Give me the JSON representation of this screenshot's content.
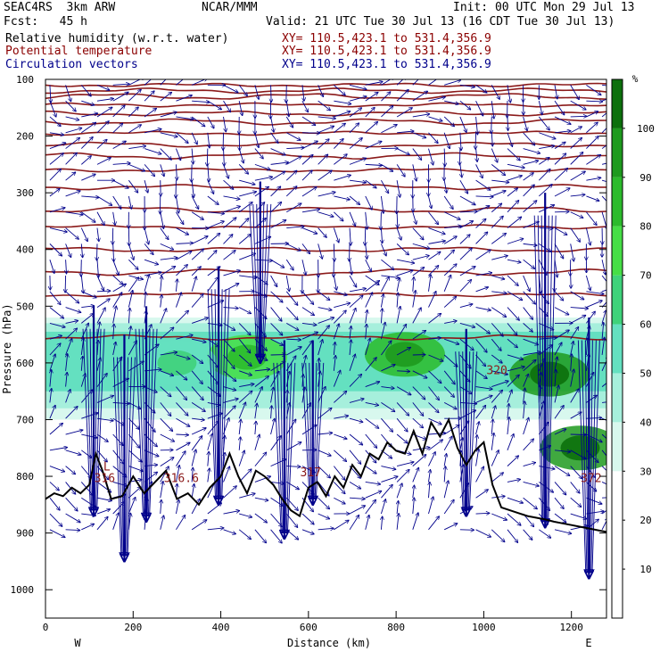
{
  "header": {
    "model": "SEAC4RS  3km ARW",
    "org": "NCAR/MMM",
    "init": "Init: 00 UTC Mon 29 Jul 13",
    "fcst": "Fcst:   45 h",
    "valid": "Valid: 21 UTC Tue 30 Jul 13 (16 CDT Tue 30 Jul 13)"
  },
  "legend": {
    "items": [
      {
        "label": "Relative humidity (w.r.t. water)",
        "coords": "XY= 110.5,423.1 to 531.4,356.9",
        "color": "#000000"
      },
      {
        "label": "Potential temperature",
        "coords": "XY= 110.5,423.1 to 531.4,356.9",
        "color": "#8b0000"
      },
      {
        "label": "Circulation vectors",
        "coords": "XY= 110.5,423.1 to 531.4,356.9",
        "color": "#00008b"
      }
    ]
  },
  "chart_data": {
    "type": "heatmap",
    "title": "",
    "xlabel": "Distance (km)",
    "ylabel": "Pressure (hPa)",
    "xlim": [
      0,
      1280
    ],
    "ylim": [
      1050,
      100
    ],
    "x_ticks": [
      0,
      200,
      400,
      600,
      800,
      1000,
      1200
    ],
    "y_ticks": [
      100,
      200,
      300,
      400,
      500,
      600,
      700,
      800,
      900,
      1000
    ],
    "x_endpoint_labels": {
      "left": "W",
      "right": "E"
    },
    "colorbar": {
      "unit": "%",
      "ticks": [
        10,
        20,
        30,
        40,
        50,
        60,
        70,
        80,
        90,
        100
      ],
      "bins": [
        {
          "from": 30,
          "to": 40,
          "color": "#d8f8ee"
        },
        {
          "from": 40,
          "to": 50,
          "color": "#a6efdc"
        },
        {
          "from": 50,
          "to": 60,
          "color": "#64e0c0"
        },
        {
          "from": 60,
          "to": 70,
          "color": "#3fd27a"
        },
        {
          "from": 70,
          "to": 80,
          "color": "#46de46"
        },
        {
          "from": 80,
          "to": 90,
          "color": "#2cbb2c"
        },
        {
          "from": 90,
          "to": 100,
          "color": "#1e9a1e"
        },
        {
          "from": 100,
          "to": 110,
          "color": "#0c700c"
        }
      ]
    },
    "rh_layer": {
      "bottom_hpa": 700,
      "top_hpa": 530
    },
    "moist_cells": [
      {
        "x": 460,
        "p": 590,
        "rh": 75
      },
      {
        "x": 820,
        "p": 585,
        "rh": 82
      },
      {
        "x": 1150,
        "p": 620,
        "rh": 95
      },
      {
        "x": 1220,
        "p": 750,
        "rh": 92
      },
      {
        "x": 300,
        "p": 600,
        "rh": 55
      }
    ],
    "theta_annotations": [
      {
        "text": "L",
        "x": 140,
        "p": 790
      },
      {
        "text": "316",
        "x": 135,
        "p": 810
      },
      {
        "text": "316.6",
        "x": 310,
        "p": 810
      },
      {
        "text": "317",
        "x": 605,
        "p": 800
      },
      {
        "text": "320",
        "x": 1030,
        "p": 620
      },
      {
        "text": "372",
        "x": 1245,
        "p": 810
      }
    ],
    "theta_levels_hpa": [
      110,
      120,
      130,
      145,
      160,
      175,
      195,
      215,
      235,
      260,
      290,
      330,
      360,
      400,
      440,
      480,
      555
    ],
    "terrain": {
      "x": [
        0,
        20,
        40,
        60,
        80,
        100,
        115,
        130,
        150,
        175,
        200,
        225,
        250,
        275,
        300,
        325,
        350,
        375,
        400,
        420,
        440,
        460,
        480,
        500,
        520,
        540,
        560,
        580,
        600,
        620,
        640,
        660,
        680,
        700,
        720,
        740,
        760,
        780,
        800,
        820,
        840,
        860,
        880,
        900,
        920,
        940,
        960,
        980,
        1000,
        1020,
        1040,
        1060,
        1080,
        1100,
        1120,
        1140,
        1160,
        1180,
        1200,
        1220,
        1240,
        1260,
        1280
      ],
      "p": [
        840,
        830,
        835,
        820,
        830,
        815,
        760,
        790,
        840,
        835,
        800,
        830,
        810,
        790,
        840,
        830,
        850,
        820,
        800,
        760,
        800,
        830,
        790,
        800,
        815,
        840,
        860,
        870,
        820,
        810,
        835,
        800,
        820,
        780,
        800,
        760,
        770,
        740,
        755,
        760,
        720,
        760,
        705,
        730,
        700,
        750,
        780,
        755,
        740,
        815,
        855,
        860,
        865,
        870,
        873,
        876,
        880,
        883,
        886,
        889,
        892,
        895,
        898
      ]
    },
    "vector_columns": [
      {
        "x": 110,
        "top_hpa": 500,
        "bottom_hpa": 870
      },
      {
        "x": 180,
        "top_hpa": 550,
        "bottom_hpa": 950
      },
      {
        "x": 230,
        "top_hpa": 500,
        "bottom_hpa": 880
      },
      {
        "x": 395,
        "top_hpa": 430,
        "bottom_hpa": 850
      },
      {
        "x": 490,
        "top_hpa": 280,
        "bottom_hpa": 600
      },
      {
        "x": 545,
        "top_hpa": 560,
        "bottom_hpa": 910
      },
      {
        "x": 610,
        "top_hpa": 560,
        "bottom_hpa": 850
      },
      {
        "x": 960,
        "top_hpa": 540,
        "bottom_hpa": 870
      },
      {
        "x": 1140,
        "top_hpa": 300,
        "bottom_hpa": 890
      },
      {
        "x": 1240,
        "top_hpa": 520,
        "bottom_hpa": 980
      }
    ]
  }
}
